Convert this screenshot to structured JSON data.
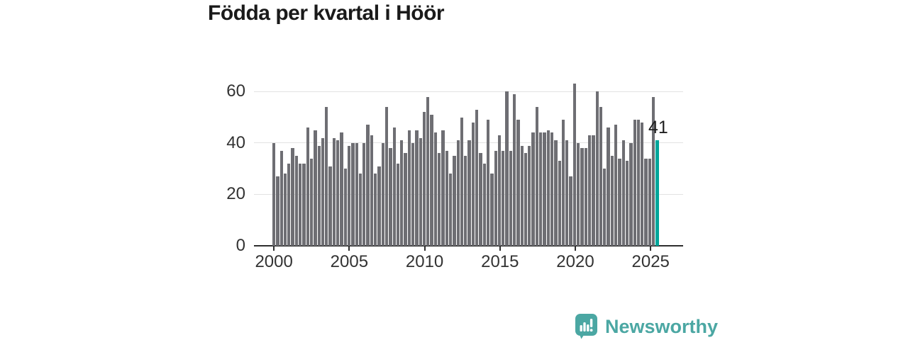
{
  "title": "Födda per kvartal i Höör",
  "chart_data": {
    "type": "bar",
    "title": "Födda per kvartal i Höör",
    "x_start": "2000-Q1",
    "x_end": "2025-Q3",
    "values": [
      40,
      27,
      37,
      28,
      32,
      38,
      35,
      32,
      32,
      46,
      34,
      45,
      39,
      42,
      54,
      31,
      42,
      41,
      44,
      30,
      39,
      40,
      40,
      28,
      40,
      47,
      43,
      28,
      31,
      40,
      54,
      38,
      46,
      32,
      41,
      36,
      45,
      40,
      45,
      42,
      52,
      58,
      51,
      44,
      36,
      45,
      37,
      28,
      35,
      41,
      50,
      35,
      41,
      48,
      53,
      36,
      32,
      49,
      28,
      37,
      43,
      37,
      60,
      37,
      59,
      49,
      39,
      36,
      39,
      44,
      54,
      44,
      44,
      45,
      44,
      41,
      33,
      49,
      41,
      27,
      63,
      40,
      38,
      38,
      43,
      43,
      60,
      54,
      30,
      46,
      35,
      47,
      34,
      41,
      33,
      40,
      49,
      49,
      48,
      34,
      34,
      58,
      41
    ],
    "highlight": {
      "index": 102,
      "value": 41,
      "label": "41",
      "quarter": "2025-Q3"
    },
    "x_ticks": [
      {
        "label": "2000",
        "quarter_index": 0
      },
      {
        "label": "2005",
        "quarter_index": 20
      },
      {
        "label": "2010",
        "quarter_index": 40
      },
      {
        "label": "2015",
        "quarter_index": 60
      },
      {
        "label": "2020",
        "quarter_index": 80
      },
      {
        "label": "2025",
        "quarter_index": 100
      }
    ],
    "y_ticks": [
      0,
      20,
      40,
      60
    ],
    "ylim": [
      0,
      65
    ],
    "grid": true,
    "legend": "none",
    "bar_color": "#6e6e73",
    "highlight_color": "#00a69b"
  },
  "logo": {
    "text": "Newsworthy",
    "color": "#4ba7a3"
  }
}
